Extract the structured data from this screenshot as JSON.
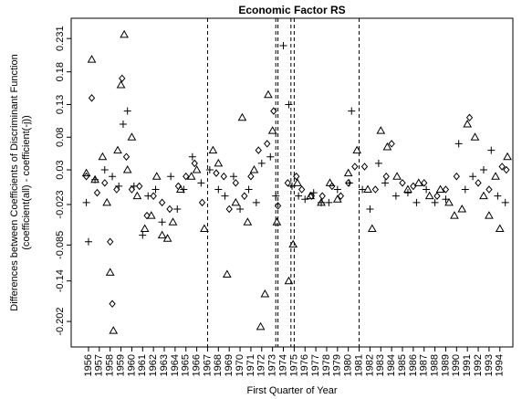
{
  "chart_data": {
    "type": "scatter",
    "title": "Economic Factor RS",
    "y_label": [
      "Differences between Coefficients of Discriminant Function",
      "(coefficient(all) - coefficient(-j))"
    ],
    "x_label": "First Quarter of Year",
    "xlim": [
      1954.4,
      1995.2
    ],
    "ylim": [
      -0.241,
      0.262
    ],
    "xticks": [
      1956,
      1957,
      1958,
      1959,
      1960,
      1961,
      1962,
      1963,
      1964,
      1965,
      1966,
      1967,
      1968,
      1969,
      1970,
      1971,
      1972,
      1973,
      1974,
      1975,
      1976,
      1977,
      1978,
      1979,
      1980,
      1981,
      1982,
      1983,
      1984,
      1985,
      1986,
      1987,
      1988,
      1989,
      1990,
      1991,
      1992,
      1993,
      1994
    ],
    "yticks": [
      0.231,
      0.18,
      0.13,
      0.08,
      0.03,
      -0.023,
      -0.085,
      -0.14,
      -0.202
    ],
    "vlines": [
      1967,
      1973.3,
      1973.5,
      1974.7,
      1975,
      1981
    ],
    "series": [
      {
        "marker": "triangle",
        "color": "#000000",
        "x": [
          1955.8,
          1956.3,
          1956.6,
          1957.3,
          1957.7,
          1958.0,
          1958.3,
          1958.7,
          1959.0,
          1959.3,
          1959.6,
          1960.0,
          1960.5,
          1961.2,
          1961.8,
          1962.3,
          1962.8,
          1963.3,
          1963.8,
          1964.5,
          1965.5,
          1966.0,
          1966.7,
          1967.5,
          1968.0,
          1968.8,
          1969.6,
          1970.2,
          1970.7,
          1971.3,
          1971.9,
          1972.3,
          1972.6,
          1973.0,
          1973.4,
          1974.5,
          1974.9,
          1975.3,
          1976.5,
          1977.5,
          1978.3,
          1979.0,
          1980.0,
          1980.8,
          1981.8,
          1982.2,
          1983.0,
          1983.6,
          1984.5,
          1985.5,
          1986.5,
          1987.5,
          1988.5,
          1989.3,
          1989.8,
          1990.5,
          1991.0,
          1991.7,
          1992.5,
          1993.0,
          1993.6,
          1994.0,
          1994.7
        ],
        "values": [
          0.025,
          0.199,
          0.015,
          0.05,
          -0.02,
          -0.127,
          -0.216,
          0.06,
          0.16,
          0.237,
          0.03,
          0.08,
          -0.01,
          -0.06,
          -0.04,
          0.02,
          -0.07,
          -0.075,
          -0.05,
          0.0,
          0.02,
          0.03,
          -0.06,
          0.06,
          0.04,
          -0.13,
          -0.02,
          0.11,
          -0.05,
          0.03,
          -0.21,
          -0.16,
          0.145,
          0.09,
          -0.05,
          -0.14,
          -0.084,
          0.01,
          -0.01,
          -0.02,
          0.01,
          -0.015,
          0.025,
          0.06,
          0.0,
          -0.06,
          0.09,
          0.065,
          0.02,
          0.0,
          0.01,
          -0.01,
          0.0,
          -0.02,
          -0.04,
          -0.03,
          0.1,
          0.08,
          -0.01,
          -0.04,
          0.02,
          -0.06,
          0.05
        ]
      },
      {
        "marker": "diamond",
        "color": "#000000",
        "x": [
          1955.8,
          1956.3,
          1956.8,
          1957.5,
          1958.0,
          1958.2,
          1958.6,
          1959.1,
          1959.5,
          1960.0,
          1960.7,
          1961.4,
          1962.0,
          1962.8,
          1963.5,
          1964.3,
          1965.0,
          1965.8,
          1966.5,
          1967.8,
          1968.5,
          1969.0,
          1969.6,
          1970.4,
          1971.0,
          1971.7,
          1972.5,
          1973.1,
          1973.5,
          1974.4,
          1975.2,
          1975.7,
          1976.6,
          1977.6,
          1978.5,
          1979.3,
          1980.0,
          1980.6,
          1981.5,
          1982.5,
          1983.5,
          1984.0,
          1985.0,
          1986.0,
          1987.0,
          1988.2,
          1989.0,
          1990.0,
          1991.2,
          1992.0,
          1993.0,
          1994.2,
          1994.6
        ],
        "values": [
          0.02,
          0.14,
          -0.005,
          0.01,
          -0.08,
          -0.175,
          0.0,
          0.17,
          0.05,
          0.0,
          0.005,
          -0.04,
          -0.01,
          -0.02,
          -0.03,
          0.005,
          0.02,
          0.04,
          -0.02,
          0.025,
          0.02,
          -0.03,
          0.01,
          -0.01,
          0.02,
          0.06,
          0.07,
          0.12,
          -0.025,
          0.01,
          0.02,
          0.0,
          -0.01,
          -0.01,
          0.005,
          -0.01,
          0.01,
          0.035,
          0.035,
          0.0,
          0.02,
          0.07,
          0.01,
          0.005,
          0.01,
          -0.01,
          0.0,
          0.02,
          0.11,
          0.01,
          0.0,
          0.035,
          0.03
        ]
      },
      {
        "marker": "plus",
        "color": "#000000",
        "x": [
          1955.8,
          1956.0,
          1956.6,
          1957.5,
          1958.2,
          1958.8,
          1959.2,
          1959.6,
          1960.2,
          1961.0,
          1961.5,
          1962.2,
          1962.8,
          1963.6,
          1964.2,
          1964.8,
          1965.6,
          1966.4,
          1967.2,
          1968.0,
          1968.6,
          1969.4,
          1970.0,
          1970.8,
          1971.5,
          1972.0,
          1972.8,
          1973.3,
          1974.0,
          1974.5,
          1974.8,
          1975.4,
          1976.0,
          1976.8,
          1977.5,
          1978.2,
          1979.0,
          1980.1,
          1980.3,
          1981.3,
          1982.0,
          1982.8,
          1983.4,
          1984.4,
          1985.5,
          1986.3,
          1987.2,
          1988.0,
          1989.0,
          1990.2,
          1990.8,
          1991.5,
          1992.5,
          1993.2,
          1993.8,
          1994.5
        ],
        "values": [
          -0.02,
          -0.08,
          0.015,
          0.03,
          0.02,
          0.005,
          0.1,
          0.12,
          0.005,
          -0.07,
          -0.01,
          0.0,
          -0.05,
          0.02,
          -0.03,
          0.0,
          0.05,
          0.01,
          0.03,
          0.0,
          -0.01,
          0.02,
          -0.03,
          0.0,
          -0.02,
          0.04,
          0.05,
          -0.01,
          0.22,
          0.13,
          0.005,
          -0.01,
          -0.015,
          -0.005,
          -0.02,
          -0.02,
          0.0,
          0.01,
          0.12,
          0.0,
          -0.03,
          0.04,
          0.01,
          -0.01,
          -0.005,
          -0.02,
          0.0,
          -0.02,
          -0.015,
          0.07,
          0.0,
          0.02,
          0.03,
          0.06,
          -0.01,
          -0.02
        ]
      }
    ]
  }
}
